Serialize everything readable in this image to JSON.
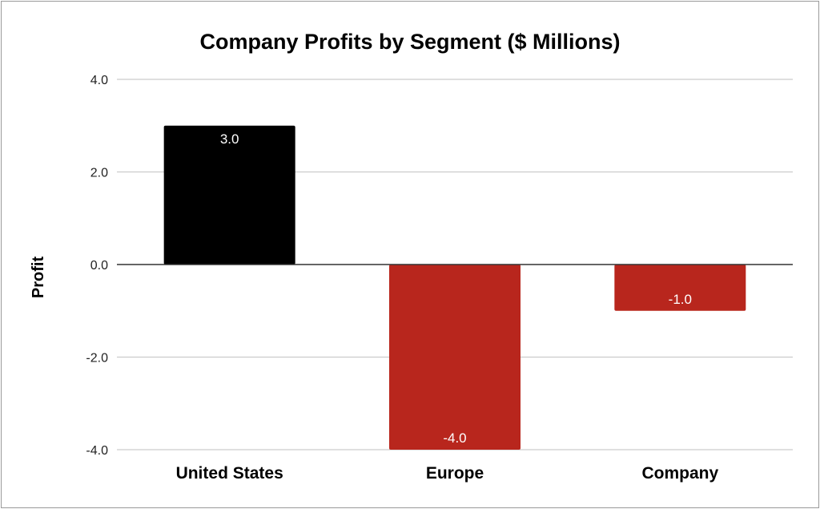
{
  "chart_data": {
    "type": "bar",
    "title": "Company Profits by Segment ($ Millions)",
    "xlabel": "",
    "ylabel": "Profit",
    "ylim": [
      -4,
      4
    ],
    "yticks": [
      4,
      2,
      0,
      -2,
      -4
    ],
    "ytick_labels": [
      "4.0",
      "2.0",
      "0.0",
      "-2.0",
      "-4.0"
    ],
    "grid": true,
    "legend": "none",
    "categories": [
      "United States",
      "Europe",
      "Company"
    ],
    "values": [
      3.0,
      -4.0,
      -1.0
    ],
    "data_labels": [
      "3.0",
      "-4.0",
      "-1.0"
    ],
    "colors": [
      "#000000",
      "#b8261d",
      "#b8261d"
    ],
    "gridline_color": "#cccccc",
    "zero_line_color": "#333333"
  }
}
